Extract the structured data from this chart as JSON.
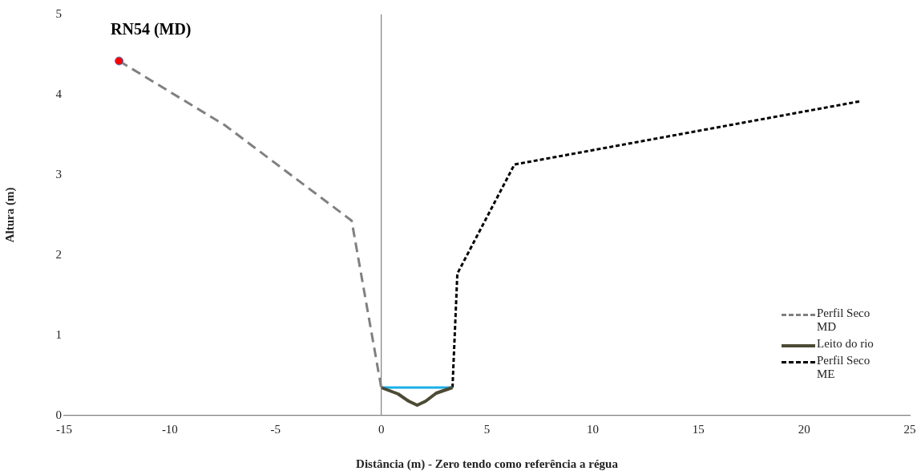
{
  "chart_data": {
    "type": "line",
    "title": "RN54 (MD)",
    "xlabel": "Distância (m) - Zero tendo como referência a régua",
    "ylabel": "Altura (m)",
    "xlim": [
      -15,
      25
    ],
    "xticks": [
      -15,
      -10,
      -5,
      0,
      5,
      10,
      15,
      20,
      25
    ],
    "ylim": [
      0,
      5
    ],
    "yticks": [
      0,
      1,
      2,
      3,
      4,
      5
    ],
    "grid": false,
    "legend": "bottom right",
    "marker": "none",
    "ref_lines": [
      {
        "axis": "x",
        "value": 0,
        "color": "#808080"
      }
    ],
    "series": [
      {
        "name": "Perfil Seco MD",
        "color": "#808080",
        "line_style": "dashed",
        "x": [
          -12.4,
          -7.4,
          -1.4,
          0
        ],
        "values": [
          4.42,
          3.62,
          2.43,
          0.35
        ]
      },
      {
        "name": "Leito do rio",
        "color": "#4d4a35",
        "line_style": "solid",
        "x": [
          0,
          0.8,
          1.3,
          1.7,
          2.1,
          2.6,
          3.37
        ],
        "values": [
          0.35,
          0.27,
          0.18,
          0.13,
          0.18,
          0.28,
          0.35
        ]
      },
      {
        "color": "#1ab0e8",
        "line_style": "solid",
        "x": [
          0,
          3.37
        ],
        "values": [
          0.35,
          0.35
        ]
      },
      {
        "name": "Perfil Seco ME",
        "color": "#000000",
        "line_style": "dotted",
        "x": [
          3.37,
          3.6,
          6.3,
          22.7
        ],
        "values": [
          0.35,
          1.77,
          3.13,
          3.92
        ]
      },
      {
        "type": "scatter",
        "marker": "circle",
        "color": "#ff0000",
        "x": [
          -12.4
        ],
        "values": [
          4.42
        ]
      }
    ]
  }
}
